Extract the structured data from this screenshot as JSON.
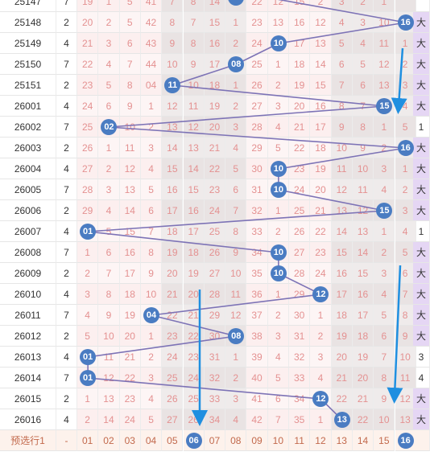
{
  "colors": {
    "ball": "#4a7cc2",
    "line": "#7d73b6",
    "arrow": "#1f8fe0",
    "digit": "#e49191",
    "big": "#e5d6f4",
    "footer_bg": "#fdf2ec",
    "footer_text": "#c2694c"
  },
  "top_partial": {
    "issue": "25147",
    "sum": "7",
    "cells": [
      "19",
      "1",
      "5",
      "41",
      "7",
      "8",
      "14",
      "",
      "22",
      "12",
      "15",
      "2",
      "3",
      "2",
      "1",
      ""
    ]
  },
  "rows": [
    {
      "issue": "25148",
      "sum": "2",
      "ball": 16,
      "sz": "大",
      "cells": [
        "20",
        "2",
        "5",
        "42",
        "8",
        "7",
        "15",
        "1",
        "23",
        "13",
        "16",
        "12",
        "4",
        "3",
        "10",
        "16"
      ]
    },
    {
      "issue": "25149",
      "sum": "4",
      "ball": 10,
      "sz": "大",
      "cells": [
        "21",
        "3",
        "6",
        "43",
        "9",
        "8",
        "16",
        "2",
        "24",
        "10",
        "17",
        "13",
        "5",
        "4",
        "11",
        "1"
      ]
    },
    {
      "issue": "25150",
      "sum": "7",
      "ball": 8,
      "sz": "大",
      "cells": [
        "22",
        "4",
        "7",
        "44",
        "10",
        "9",
        "17",
        "08",
        "25",
        "1",
        "18",
        "14",
        "6",
        "5",
        "12",
        "2"
      ]
    },
    {
      "issue": "25151",
      "sum": "2",
      "ball": 5,
      "sz": "大",
      "cells": [
        "23",
        "5",
        "8",
        "04",
        "11",
        "10",
        "18",
        "1",
        "26",
        "2",
        "19",
        "15",
        "7",
        "6",
        "13",
        "3"
      ]
    },
    {
      "issue": "26001",
      "sum": "4",
      "ball": 15,
      "sz": "大",
      "cells": [
        "24",
        "6",
        "9",
        "1",
        "12",
        "11",
        "19",
        "2",
        "27",
        "3",
        "20",
        "16",
        "8",
        "7",
        "15",
        "4"
      ]
    },
    {
      "issue": "26002",
      "sum": "7",
      "ball": 2,
      "sz": "1",
      "cells": [
        "25",
        "02",
        "10",
        "2",
        "13",
        "12",
        "20",
        "3",
        "28",
        "4",
        "21",
        "17",
        "9",
        "8",
        "1",
        "5"
      ]
    },
    {
      "issue": "26003",
      "sum": "2",
      "ball": 16,
      "sz": "大",
      "cells": [
        "26",
        "1",
        "11",
        "3",
        "14",
        "13",
        "21",
        "4",
        "29",
        "5",
        "22",
        "18",
        "10",
        "9",
        "2",
        "16"
      ]
    },
    {
      "issue": "26004",
      "sum": "4",
      "ball": 10,
      "sz": "大",
      "cells": [
        "27",
        "2",
        "12",
        "4",
        "15",
        "14",
        "22",
        "5",
        "30",
        "10",
        "23",
        "19",
        "11",
        "10",
        "3",
        "1"
      ]
    },
    {
      "issue": "26005",
      "sum": "7",
      "ball": 10,
      "sz": "大",
      "cells": [
        "28",
        "3",
        "13",
        "5",
        "16",
        "15",
        "23",
        "6",
        "31",
        "10",
        "24",
        "20",
        "12",
        "11",
        "4",
        "2"
      ]
    },
    {
      "issue": "26006",
      "sum": "2",
      "ball": 15,
      "sz": "大",
      "cells": [
        "29",
        "4",
        "14",
        "6",
        "17",
        "16",
        "24",
        "7",
        "32",
        "1",
        "25",
        "21",
        "13",
        "12",
        "15",
        "3"
      ]
    },
    {
      "issue": "26007",
      "sum": "4",
      "ball": 1,
      "sz": "1",
      "cells": [
        "01",
        "5",
        "15",
        "7",
        "18",
        "17",
        "25",
        "8",
        "33",
        "2",
        "26",
        "22",
        "14",
        "13",
        "1",
        "4"
      ]
    },
    {
      "issue": "26008",
      "sum": "7",
      "ball": 10,
      "sz": "大",
      "cells": [
        "1",
        "6",
        "16",
        "8",
        "19",
        "18",
        "26",
        "9",
        "34",
        "10",
        "27",
        "23",
        "15",
        "14",
        "2",
        "5"
      ]
    },
    {
      "issue": "26009",
      "sum": "2",
      "ball": 10,
      "sz": "大",
      "cells": [
        "2",
        "7",
        "17",
        "9",
        "20",
        "19",
        "27",
        "10",
        "35",
        "10",
        "28",
        "24",
        "16",
        "15",
        "3",
        "6"
      ]
    },
    {
      "issue": "26010",
      "sum": "4",
      "ball": 12,
      "sz": "大",
      "cells": [
        "3",
        "8",
        "18",
        "10",
        "21",
        "20",
        "28",
        "11",
        "36",
        "1",
        "29",
        "12",
        "17",
        "16",
        "4",
        "7"
      ]
    },
    {
      "issue": "26011",
      "sum": "7",
      "ball": 4,
      "sz": "大",
      "cells": [
        "4",
        "9",
        "19",
        "04",
        "22",
        "21",
        "29",
        "12",
        "37",
        "2",
        "30",
        "1",
        "18",
        "17",
        "5",
        "8"
      ]
    },
    {
      "issue": "26012",
      "sum": "2",
      "ball": 8,
      "sz": "大",
      "cells": [
        "5",
        "10",
        "20",
        "1",
        "23",
        "22",
        "30",
        "08",
        "38",
        "3",
        "31",
        "2",
        "19",
        "18",
        "6",
        "9"
      ]
    },
    {
      "issue": "26013",
      "sum": "4",
      "ball": 1,
      "sz": "3",
      "cells": [
        "01",
        "11",
        "21",
        "2",
        "24",
        "23",
        "31",
        "1",
        "39",
        "4",
        "32",
        "3",
        "20",
        "19",
        "7",
        "10"
      ]
    },
    {
      "issue": "26014",
      "sum": "7",
      "ball": 1,
      "sz": "4",
      "cells": [
        "01",
        "12",
        "22",
        "3",
        "25",
        "24",
        "32",
        "2",
        "40",
        "5",
        "33",
        "4",
        "21",
        "20",
        "8",
        "11"
      ]
    },
    {
      "issue": "26015",
      "sum": "2",
      "ball": 12,
      "sz": "大",
      "cells": [
        "1",
        "13",
        "23",
        "4",
        "26",
        "25",
        "33",
        "3",
        "41",
        "6",
        "34",
        "12",
        "22",
        "21",
        "9",
        "12"
      ]
    },
    {
      "issue": "26016",
      "sum": "4",
      "ball": 13,
      "sz": "大",
      "cells": [
        "2",
        "14",
        "24",
        "5",
        "27",
        "26",
        "34",
        "4",
        "42",
        "7",
        "35",
        "1",
        "13",
        "22",
        "10",
        "13"
      ]
    }
  ],
  "footer": {
    "label": "预选行1",
    "dash": "-",
    "numbers": [
      "01",
      "02",
      "03",
      "04",
      "05",
      "06",
      "07",
      "08",
      "09",
      "10",
      "11",
      "12",
      "13",
      "14",
      "15",
      "16"
    ],
    "selected": [
      "06",
      "16"
    ]
  }
}
